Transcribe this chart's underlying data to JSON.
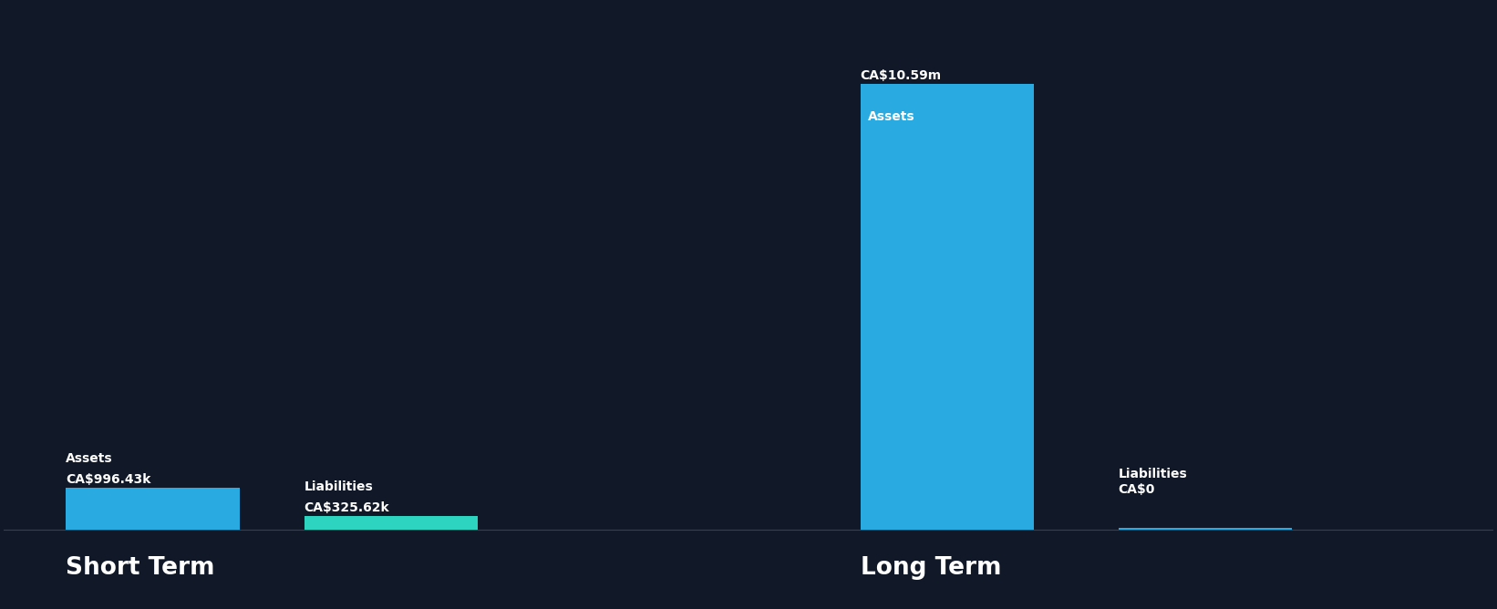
{
  "background_color": "#111827",
  "bar_color_assets": "#29abe2",
  "bar_color_liabilities": "#2dd4bf",
  "short_term_assets": 996430,
  "short_term_liabilities": 325620,
  "long_term_assets": 10590000,
  "long_term_liabilities": 0,
  "short_term_assets_label": "CA$996.43k",
  "short_term_liabilities_label": "CA$325.62k",
  "long_term_assets_label": "CA$10.59m",
  "long_term_liabilities_label": "CA$0",
  "section_label_short": "Short Term",
  "section_label_long": "Long Term",
  "bar_label_assets": "Assets",
  "bar_label_liabilities": "Liabilities",
  "text_color": "#ffffff",
  "bar_width": 0.35
}
